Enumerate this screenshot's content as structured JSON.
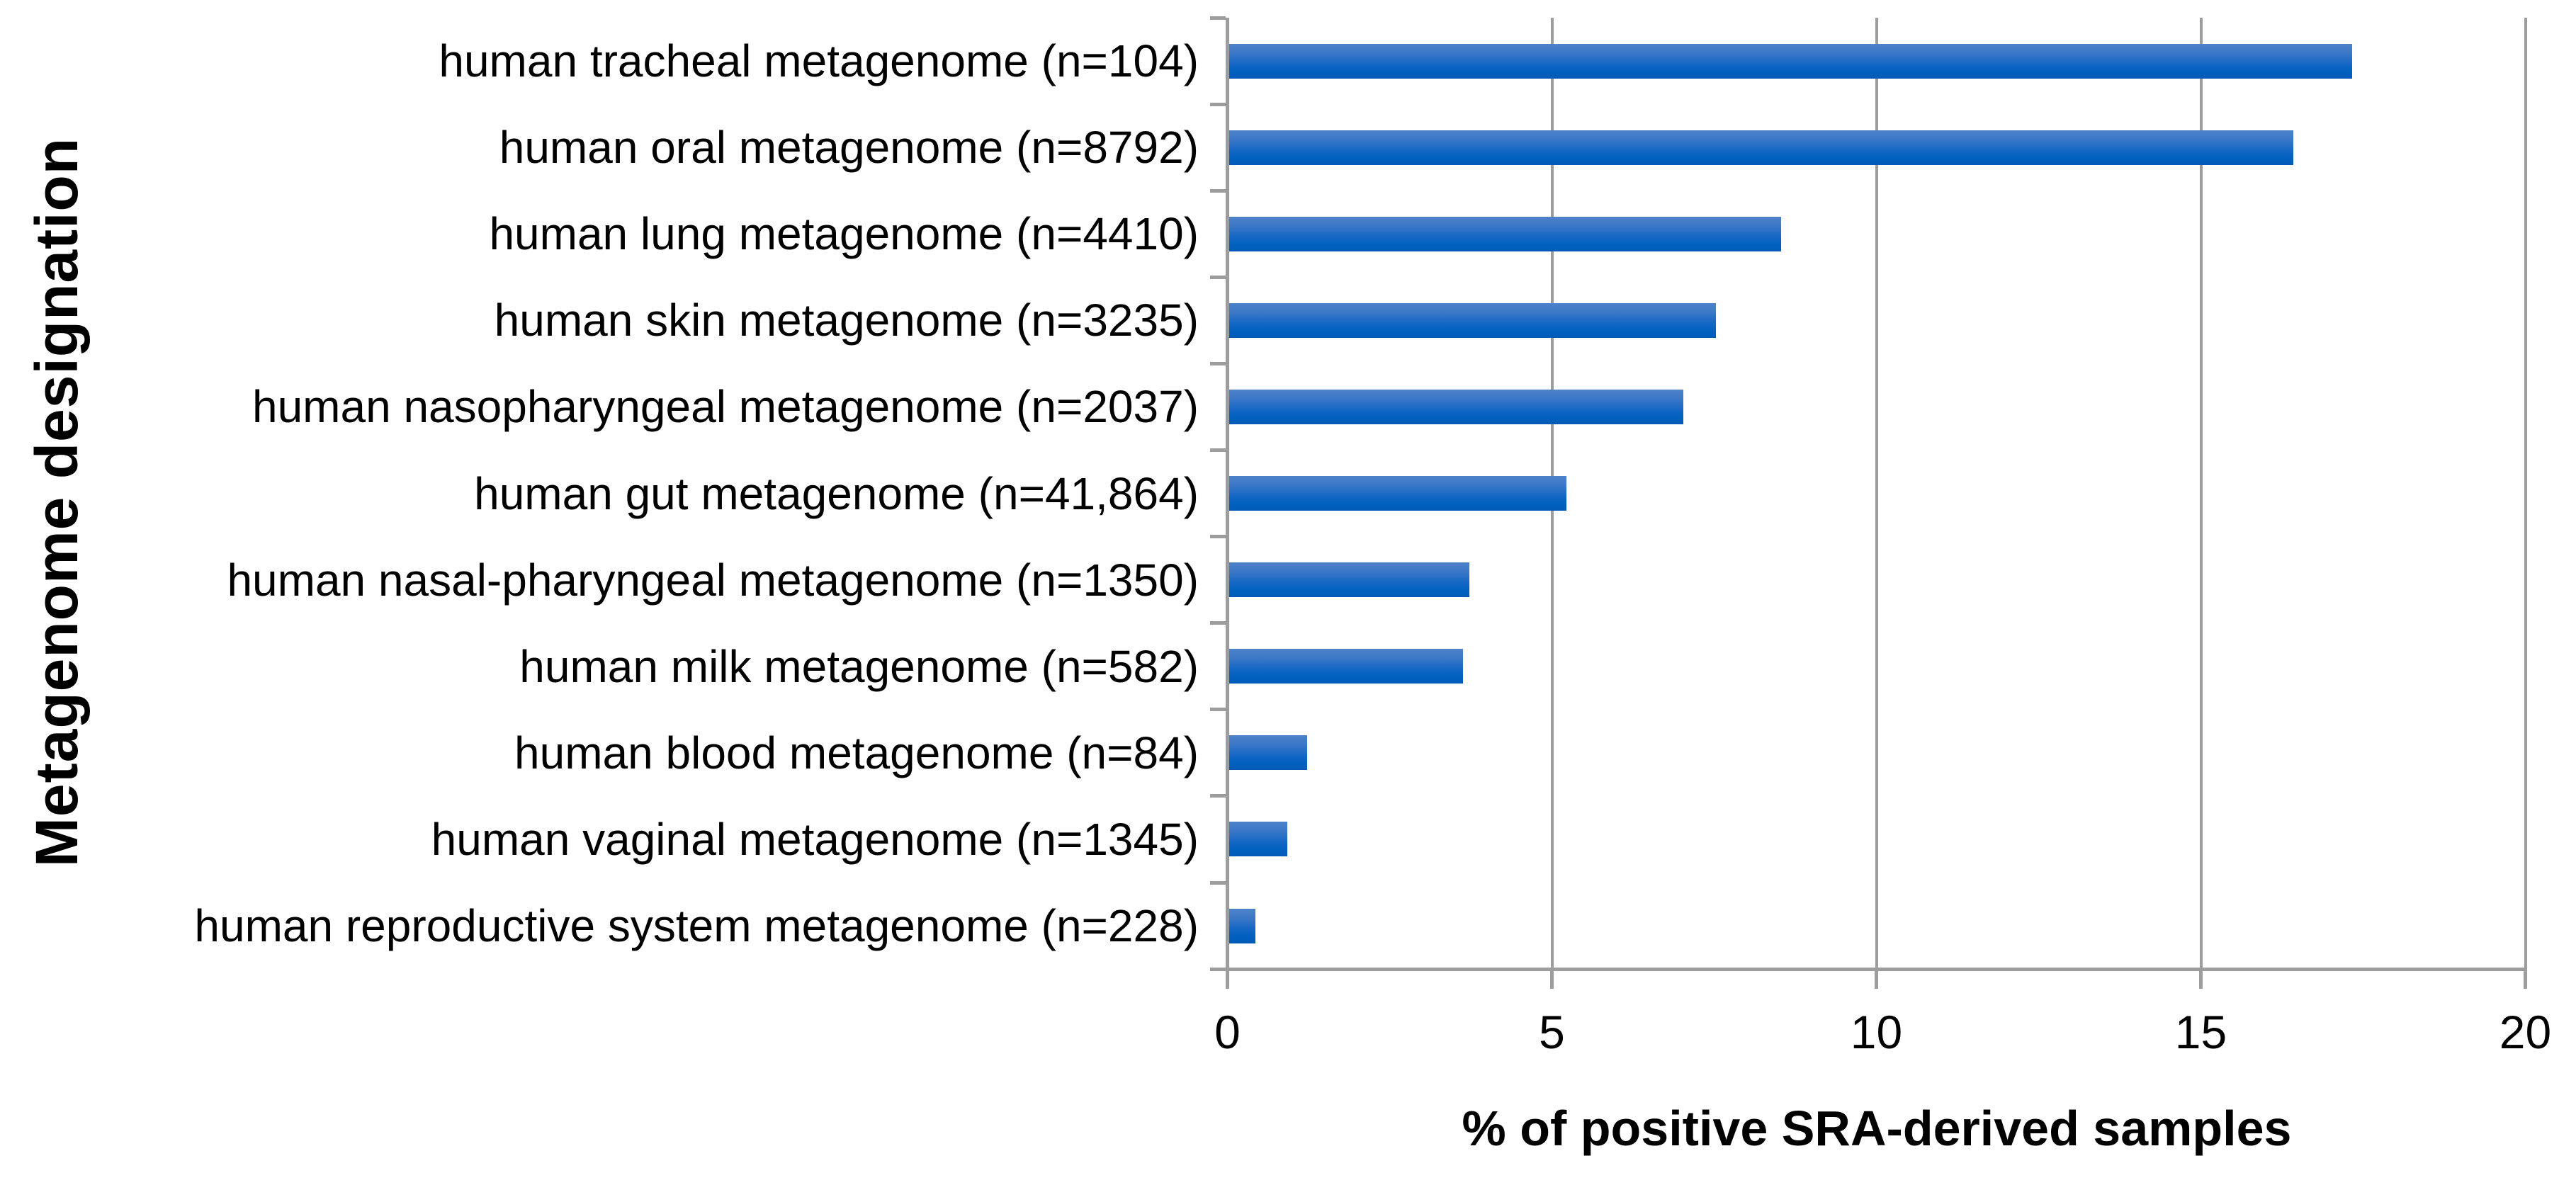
{
  "chart_data": {
    "type": "bar",
    "orientation": "horizontal",
    "title": "",
    "xlabel": "% of positive SRA-derived samples",
    "ylabel": "Metagenome designation",
    "xlim": [
      0,
      20
    ],
    "xticks": [
      "0",
      "5",
      "10",
      "15",
      "20"
    ],
    "xtick_values": [
      0,
      5,
      10,
      15,
      20
    ],
    "legend": "none",
    "grid": "vertical-gridlines-at-ticks",
    "categories": [
      "human tracheal metagenome (n=104)",
      "human oral metagenome (n=8792)",
      "human lung metagenome (n=4410)",
      "human skin metagenome (n=3235)",
      "human nasopharyngeal metagenome (n=2037)",
      "human gut metagenome (n=41,864)",
      "human nasal-pharyngeal metagenome (n=1350)",
      "human milk metagenome (n=582)",
      "human blood metagenome (n=84)",
      "human vaginal metagenome (n=1345)",
      "human reproductive system metagenome (n=228)"
    ],
    "values": [
      17.3,
      16.4,
      8.5,
      7.5,
      7.0,
      5.2,
      3.7,
      3.6,
      1.2,
      0.9,
      0.4
    ],
    "bar_color_top": "#4e82ca",
    "bar_color_bottom": "#005ab6",
    "axis_color": "#9d9d9d",
    "text_color": "#000000",
    "background_color": "#ffffff"
  }
}
